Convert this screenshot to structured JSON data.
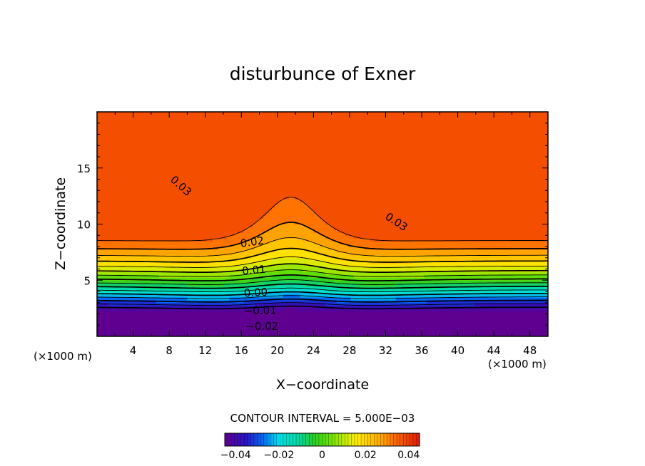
{
  "chart_data": {
    "type": "contour",
    "title": "disturbunce of Exner",
    "xlabel": "X−coordinate",
    "ylabel": "Z−coordinate",
    "x_unit_label": "(×1000 m)",
    "z_unit_label": "(×1000 m)",
    "xlim": [
      0,
      50
    ],
    "ylim": [
      0,
      20
    ],
    "x_ticks": [
      {
        "value": 4,
        "label": "4"
      },
      {
        "value": 8,
        "label": "8"
      },
      {
        "value": 12,
        "label": "12"
      },
      {
        "value": 16,
        "label": "16"
      },
      {
        "value": 20,
        "label": "20"
      },
      {
        "value": 24,
        "label": "24"
      },
      {
        "value": 28,
        "label": "28"
      },
      {
        "value": 32,
        "label": "32"
      },
      {
        "value": 36,
        "label": "36"
      },
      {
        "value": 40,
        "label": "40"
      },
      {
        "value": 44,
        "label": "44"
      },
      {
        "value": 48,
        "label": "48"
      }
    ],
    "y_ticks": [
      {
        "value": 5,
        "label": "5"
      },
      {
        "value": 10,
        "label": "10"
      },
      {
        "value": 15,
        "label": "15"
      }
    ],
    "contour_interval_text": "CONTOUR INTERVAL = 5.000E−03",
    "contour_interval": 0.005,
    "value_range": [
      -0.045,
      0.045
    ],
    "contour_labels": [
      {
        "text": "0.03",
        "x": 9.3,
        "z": 13.4,
        "angle": 42
      },
      {
        "text": "0.03",
        "x": 33.2,
        "z": 10.2,
        "angle": 33
      },
      {
        "text": "0.02",
        "x": 17.2,
        "z": 8.4,
        "angle": -8
      },
      {
        "text": "0.01",
        "x": 17.4,
        "z": 5.9,
        "angle": -5
      },
      {
        "text": "0.00",
        "x": 17.6,
        "z": 3.9,
        "angle": -3
      },
      {
        "text": "−0.01",
        "x": 18.1,
        "z": 2.3,
        "angle": -2
      },
      {
        "text": "−0.02",
        "x": 18.3,
        "z": 0.9,
        "angle": 0
      }
    ],
    "colorbar": {
      "ticks": [
        {
          "value": -0.04,
          "label": "−0.04"
        },
        {
          "value": -0.02,
          "label": "−0.02"
        },
        {
          "value": 0,
          "label": "0"
        },
        {
          "value": 0.02,
          "label": "0.02"
        },
        {
          "value": 0.04,
          "label": "0.04"
        }
      ]
    }
  }
}
